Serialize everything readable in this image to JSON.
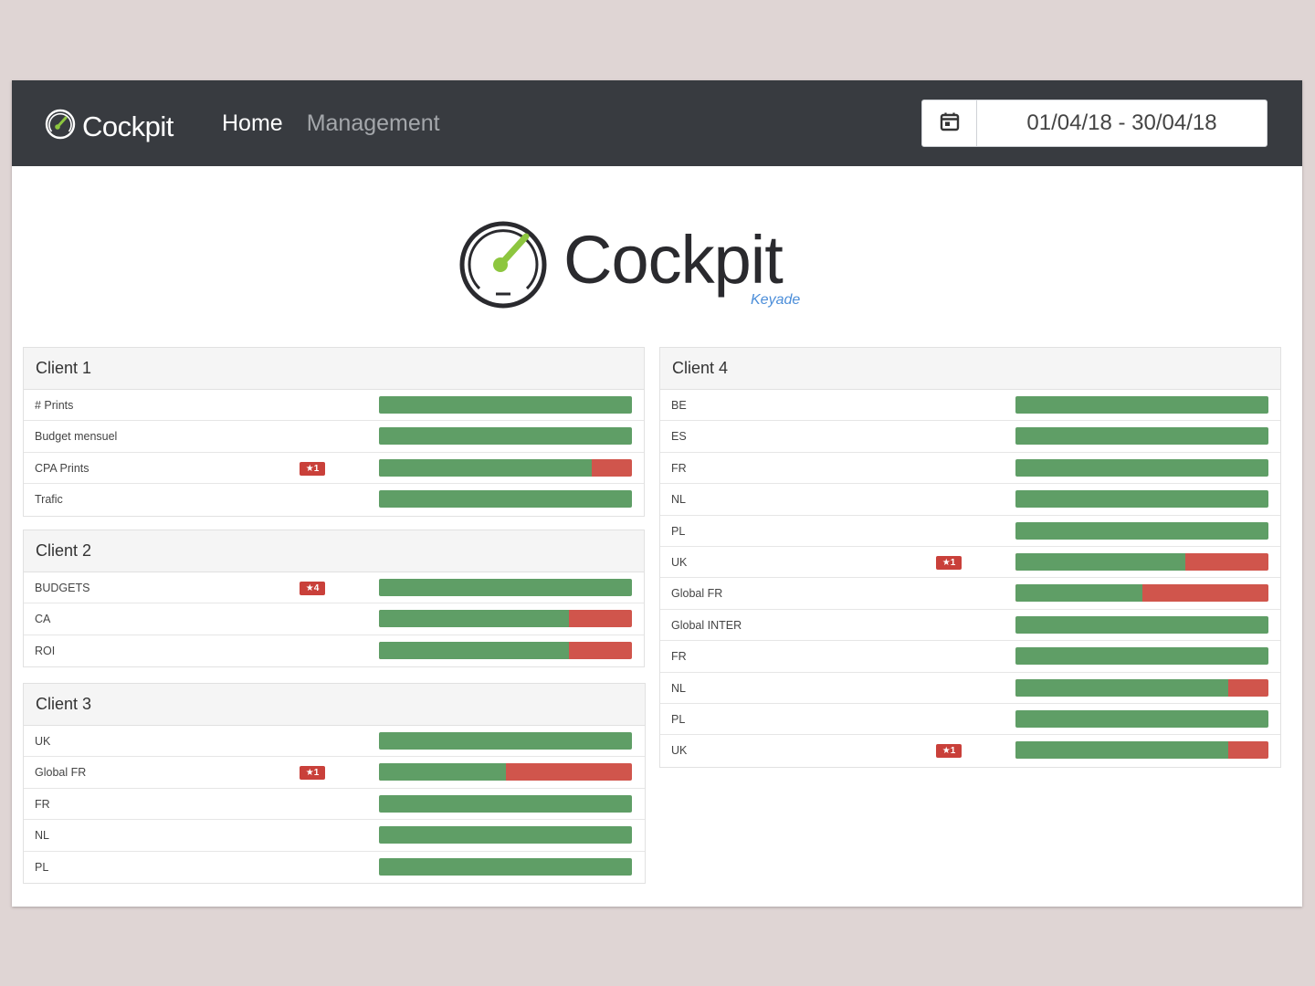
{
  "navbar": {
    "brand": "Cockpit",
    "links": [
      {
        "label": "Home",
        "active": true
      },
      {
        "label": "Management",
        "active": false
      }
    ],
    "date_range": "01/04/18 - 30/04/18"
  },
  "hero": {
    "title": "Cockpit",
    "subtitle": "Keyade"
  },
  "colors": {
    "navbar_bg": "#383b40",
    "bar_green": "#5f9e66",
    "bar_red": "#d0554c",
    "badge_red": "#c9403a",
    "accent_green": "#8dc63f"
  },
  "panels": [
    {
      "title": "Client 1",
      "rows": [
        {
          "label": "# Prints",
          "badge": "",
          "ok_fraction": 1.0
        },
        {
          "label": "Budget mensuel",
          "badge": "",
          "ok_fraction": 1.0
        },
        {
          "label": "CPA Prints",
          "badge": "★1",
          "ok_fraction": 0.84
        },
        {
          "label": "Trafic",
          "badge": "",
          "ok_fraction": 1.0
        }
      ]
    },
    {
      "title": "Client 2",
      "rows": [
        {
          "label": "BUDGETS",
          "badge": "★4",
          "ok_fraction": 1.0
        },
        {
          "label": "CA",
          "badge": "",
          "ok_fraction": 0.75
        },
        {
          "label": "ROI",
          "badge": "",
          "ok_fraction": 0.75
        }
      ]
    },
    {
      "title": "Client 3",
      "rows": [
        {
          "label": "UK",
          "badge": "",
          "ok_fraction": 1.0
        },
        {
          "label": "Global FR",
          "badge": "★1",
          "ok_fraction": 0.5
        },
        {
          "label": "FR",
          "badge": "",
          "ok_fraction": 1.0
        },
        {
          "label": "NL",
          "badge": "",
          "ok_fraction": 1.0
        },
        {
          "label": "PL",
          "badge": "",
          "ok_fraction": 1.0
        }
      ]
    },
    {
      "title": "Client 4",
      "rows": [
        {
          "label": "BE",
          "badge": "",
          "ok_fraction": 1.0
        },
        {
          "label": "ES",
          "badge": "",
          "ok_fraction": 1.0
        },
        {
          "label": "FR",
          "badge": "",
          "ok_fraction": 1.0
        },
        {
          "label": "NL",
          "badge": "",
          "ok_fraction": 1.0
        },
        {
          "label": "PL",
          "badge": "",
          "ok_fraction": 1.0
        },
        {
          "label": "UK",
          "badge": "★1",
          "ok_fraction": 0.67
        },
        {
          "label": "Global FR",
          "badge": "",
          "ok_fraction": 0.5
        },
        {
          "label": "Global INTER",
          "badge": "",
          "ok_fraction": 1.0
        },
        {
          "label": "FR",
          "badge": "",
          "ok_fraction": 1.0
        },
        {
          "label": "NL",
          "badge": "",
          "ok_fraction": 0.84
        },
        {
          "label": "PL",
          "badge": "",
          "ok_fraction": 1.0
        },
        {
          "label": "UK",
          "badge": "★1",
          "ok_fraction": 0.84
        }
      ]
    }
  ]
}
